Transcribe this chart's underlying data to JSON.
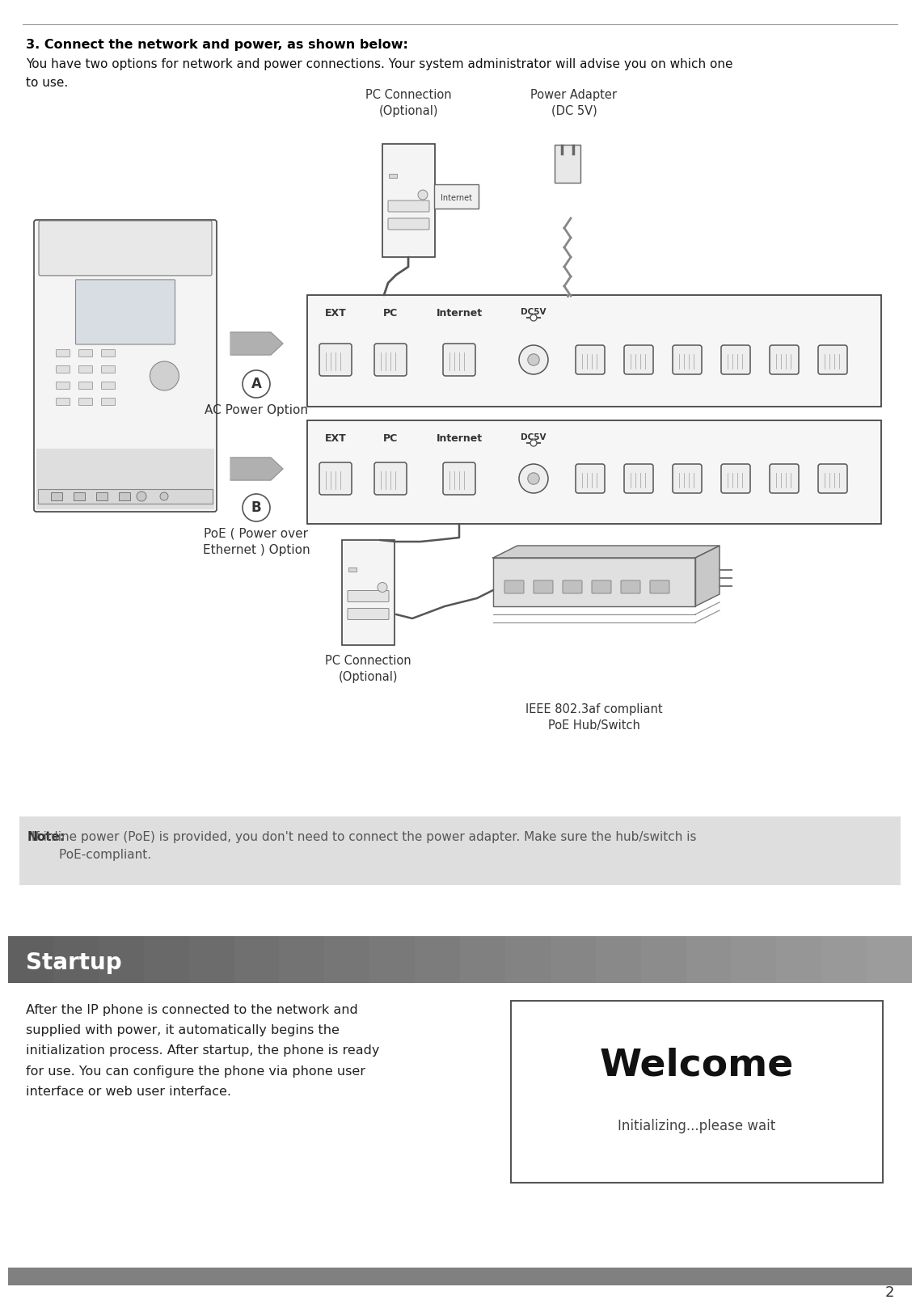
{
  "bg_color": "#ffffff",
  "header_title": "3. Connect the network and power, as shown below:",
  "header_body": "You have two options for network and power connections. Your system administrator will advise you on which one\nto use.",
  "note_bg": "#dedede",
  "note_label": "Note:",
  "note_text": " If inline power (PoE) is provided, you don't need to connect the power adapter. Make sure the hub/switch is\n        PoE-compliant.",
  "startup_bar_left": "#606060",
  "startup_bar_right": "#a0a0a0",
  "startup_label": "Startup",
  "startup_body": "After the IP phone is connected to the network and\nsupplied with power, it automatically begins the\ninitialization process. After startup, the phone is ready\nfor use. You can configure the phone via phone user\ninterface or web user interface.",
  "welcome_title": "Welcome",
  "welcome_sub": "Initializing...please wait",
  "footer_bar_color": "#808080",
  "page_num": "2",
  "option_a_label": "A",
  "option_a_text": "AC Power Option",
  "option_b_label": "B",
  "option_b_text": "PoE ( Power over\nEthernet ) Option",
  "pc_conn_top_label": "PC Connection\n(Optional)",
  "power_adapter_label": "Power Adapter\n(DC 5V)",
  "pc_conn_bot_label": "PC Connection\n(Optional)",
  "poe_label": "IEEE 802.3af compliant\nPoE Hub/Switch",
  "port_labels": [
    "EXT",
    "PC",
    "Internet",
    "DC5V"
  ],
  "top_line_color": "#999999",
  "diagram_line_color": "#444444",
  "diagram_fill_light": "#f4f4f4",
  "diagram_fill_mid": "#e0e0e0",
  "port_fill": "#eeeeee",
  "arrow_fill": "#b0b0b0"
}
